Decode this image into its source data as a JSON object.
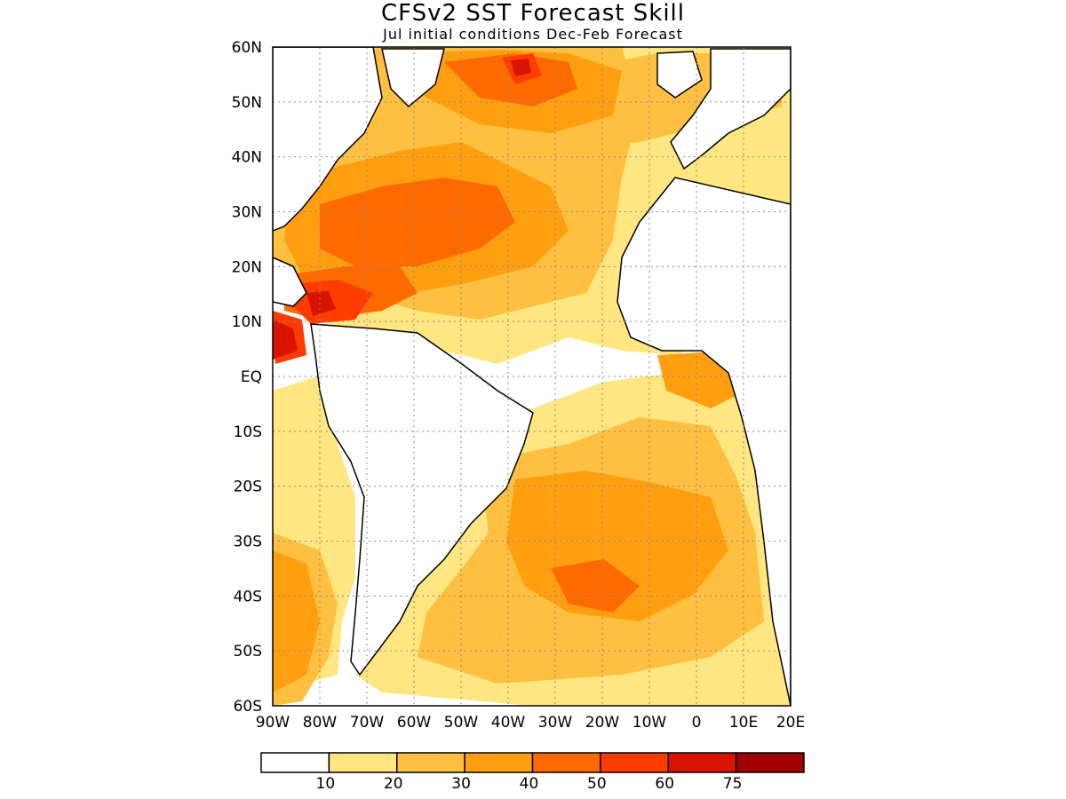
{
  "header": {
    "title": "CFSv2 SST Forecast Skill",
    "subtitle": "Jul initial conditions  Dec-Feb Forecast"
  },
  "map": {
    "lat_labels": [
      "60N",
      "50N",
      "40N",
      "30N",
      "20N",
      "10N",
      "EQ",
      "10S",
      "20S",
      "30S",
      "40S",
      "50S",
      "60S"
    ],
    "lon_labels": [
      "90W",
      "80W",
      "70W",
      "60W",
      "50W",
      "40W",
      "30W",
      "20W",
      "10W",
      "0",
      "10E",
      "20E"
    ],
    "lon_range": [
      -90,
      20
    ],
    "lat_range": [
      -60,
      60
    ],
    "grid": true
  },
  "legend": {
    "ticks": [
      "10",
      "20",
      "30",
      "40",
      "50",
      "60",
      "75"
    ],
    "colors": [
      "#ffffff",
      "#ffe680",
      "#ffbf40",
      "#ff9f10",
      "#ff6a00",
      "#ff3c00",
      "#d81400",
      "#a00000"
    ]
  }
}
